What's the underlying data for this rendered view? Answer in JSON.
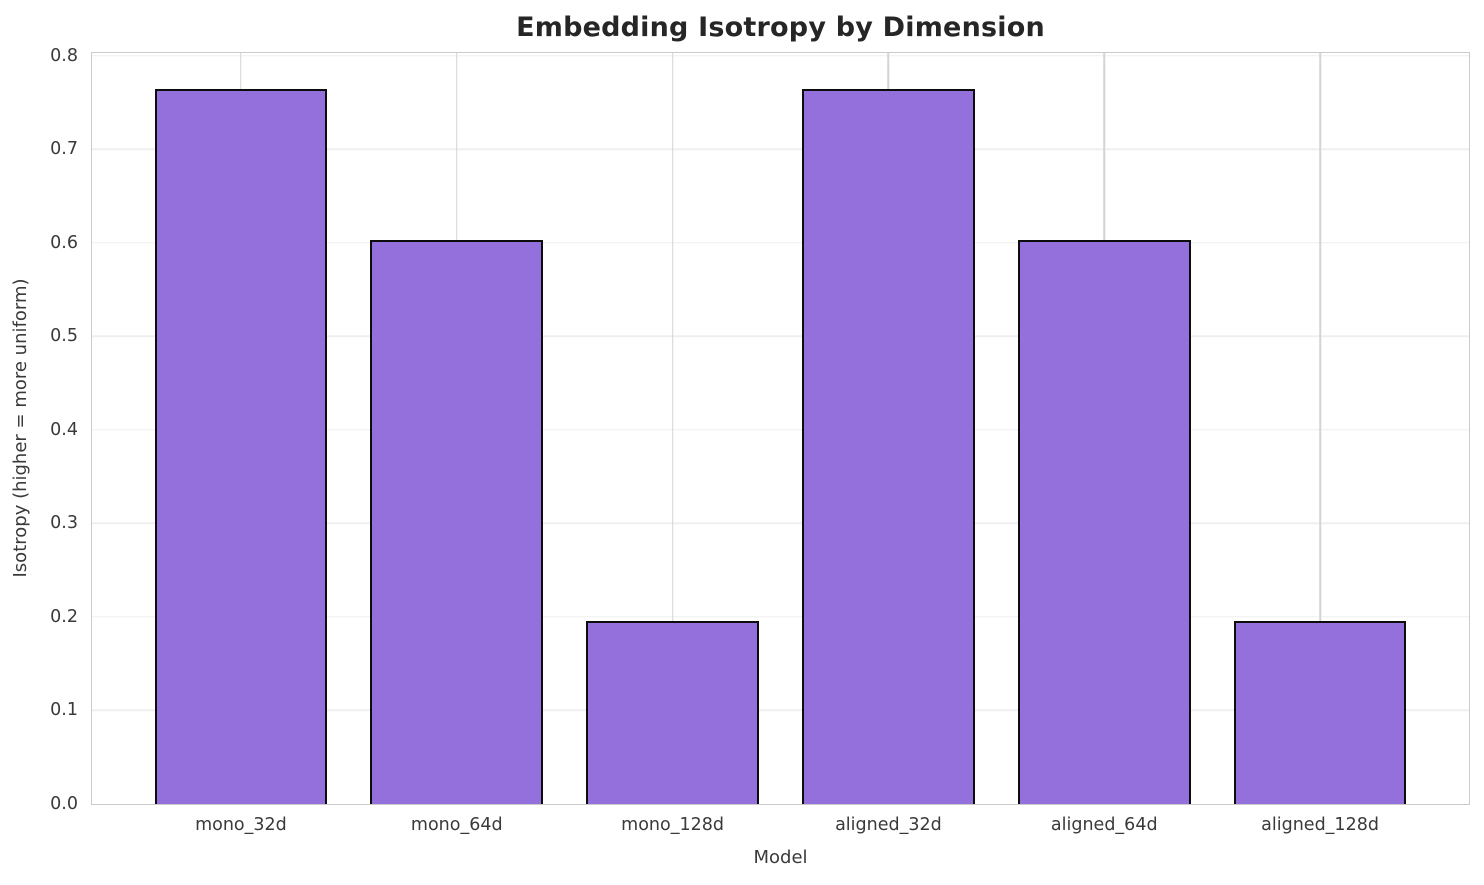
{
  "chart_data": {
    "type": "bar",
    "title": "Embedding Isotropy by Dimension",
    "xlabel": "Model",
    "ylabel": "Isotropy (higher = more uniform)",
    "categories": [
      "mono_32d",
      "mono_64d",
      "mono_128d",
      "aligned_32d",
      "aligned_64d",
      "aligned_128d"
    ],
    "values": [
      0.765,
      0.603,
      0.196,
      0.765,
      0.603,
      0.196
    ],
    "yticks": [
      0.0,
      0.1,
      0.2,
      0.3,
      0.4,
      0.5,
      0.6,
      0.7,
      0.8
    ],
    "ylim": [
      0,
      0.8032
    ],
    "bar_width_fraction": 0.8,
    "x_margin_units": 0.69,
    "grid": "on",
    "legend_position": "none",
    "colors": {
      "bar_fill": "#9370DB",
      "bar_edge": "#0d0d0d",
      "grid_horizontal": "#efefef",
      "grid_vertical": "#d4d4d4",
      "spine": "#cbcbcb",
      "tick_text": "#3a3a3a",
      "title_text": "#262626",
      "background": "#ffffff"
    }
  }
}
